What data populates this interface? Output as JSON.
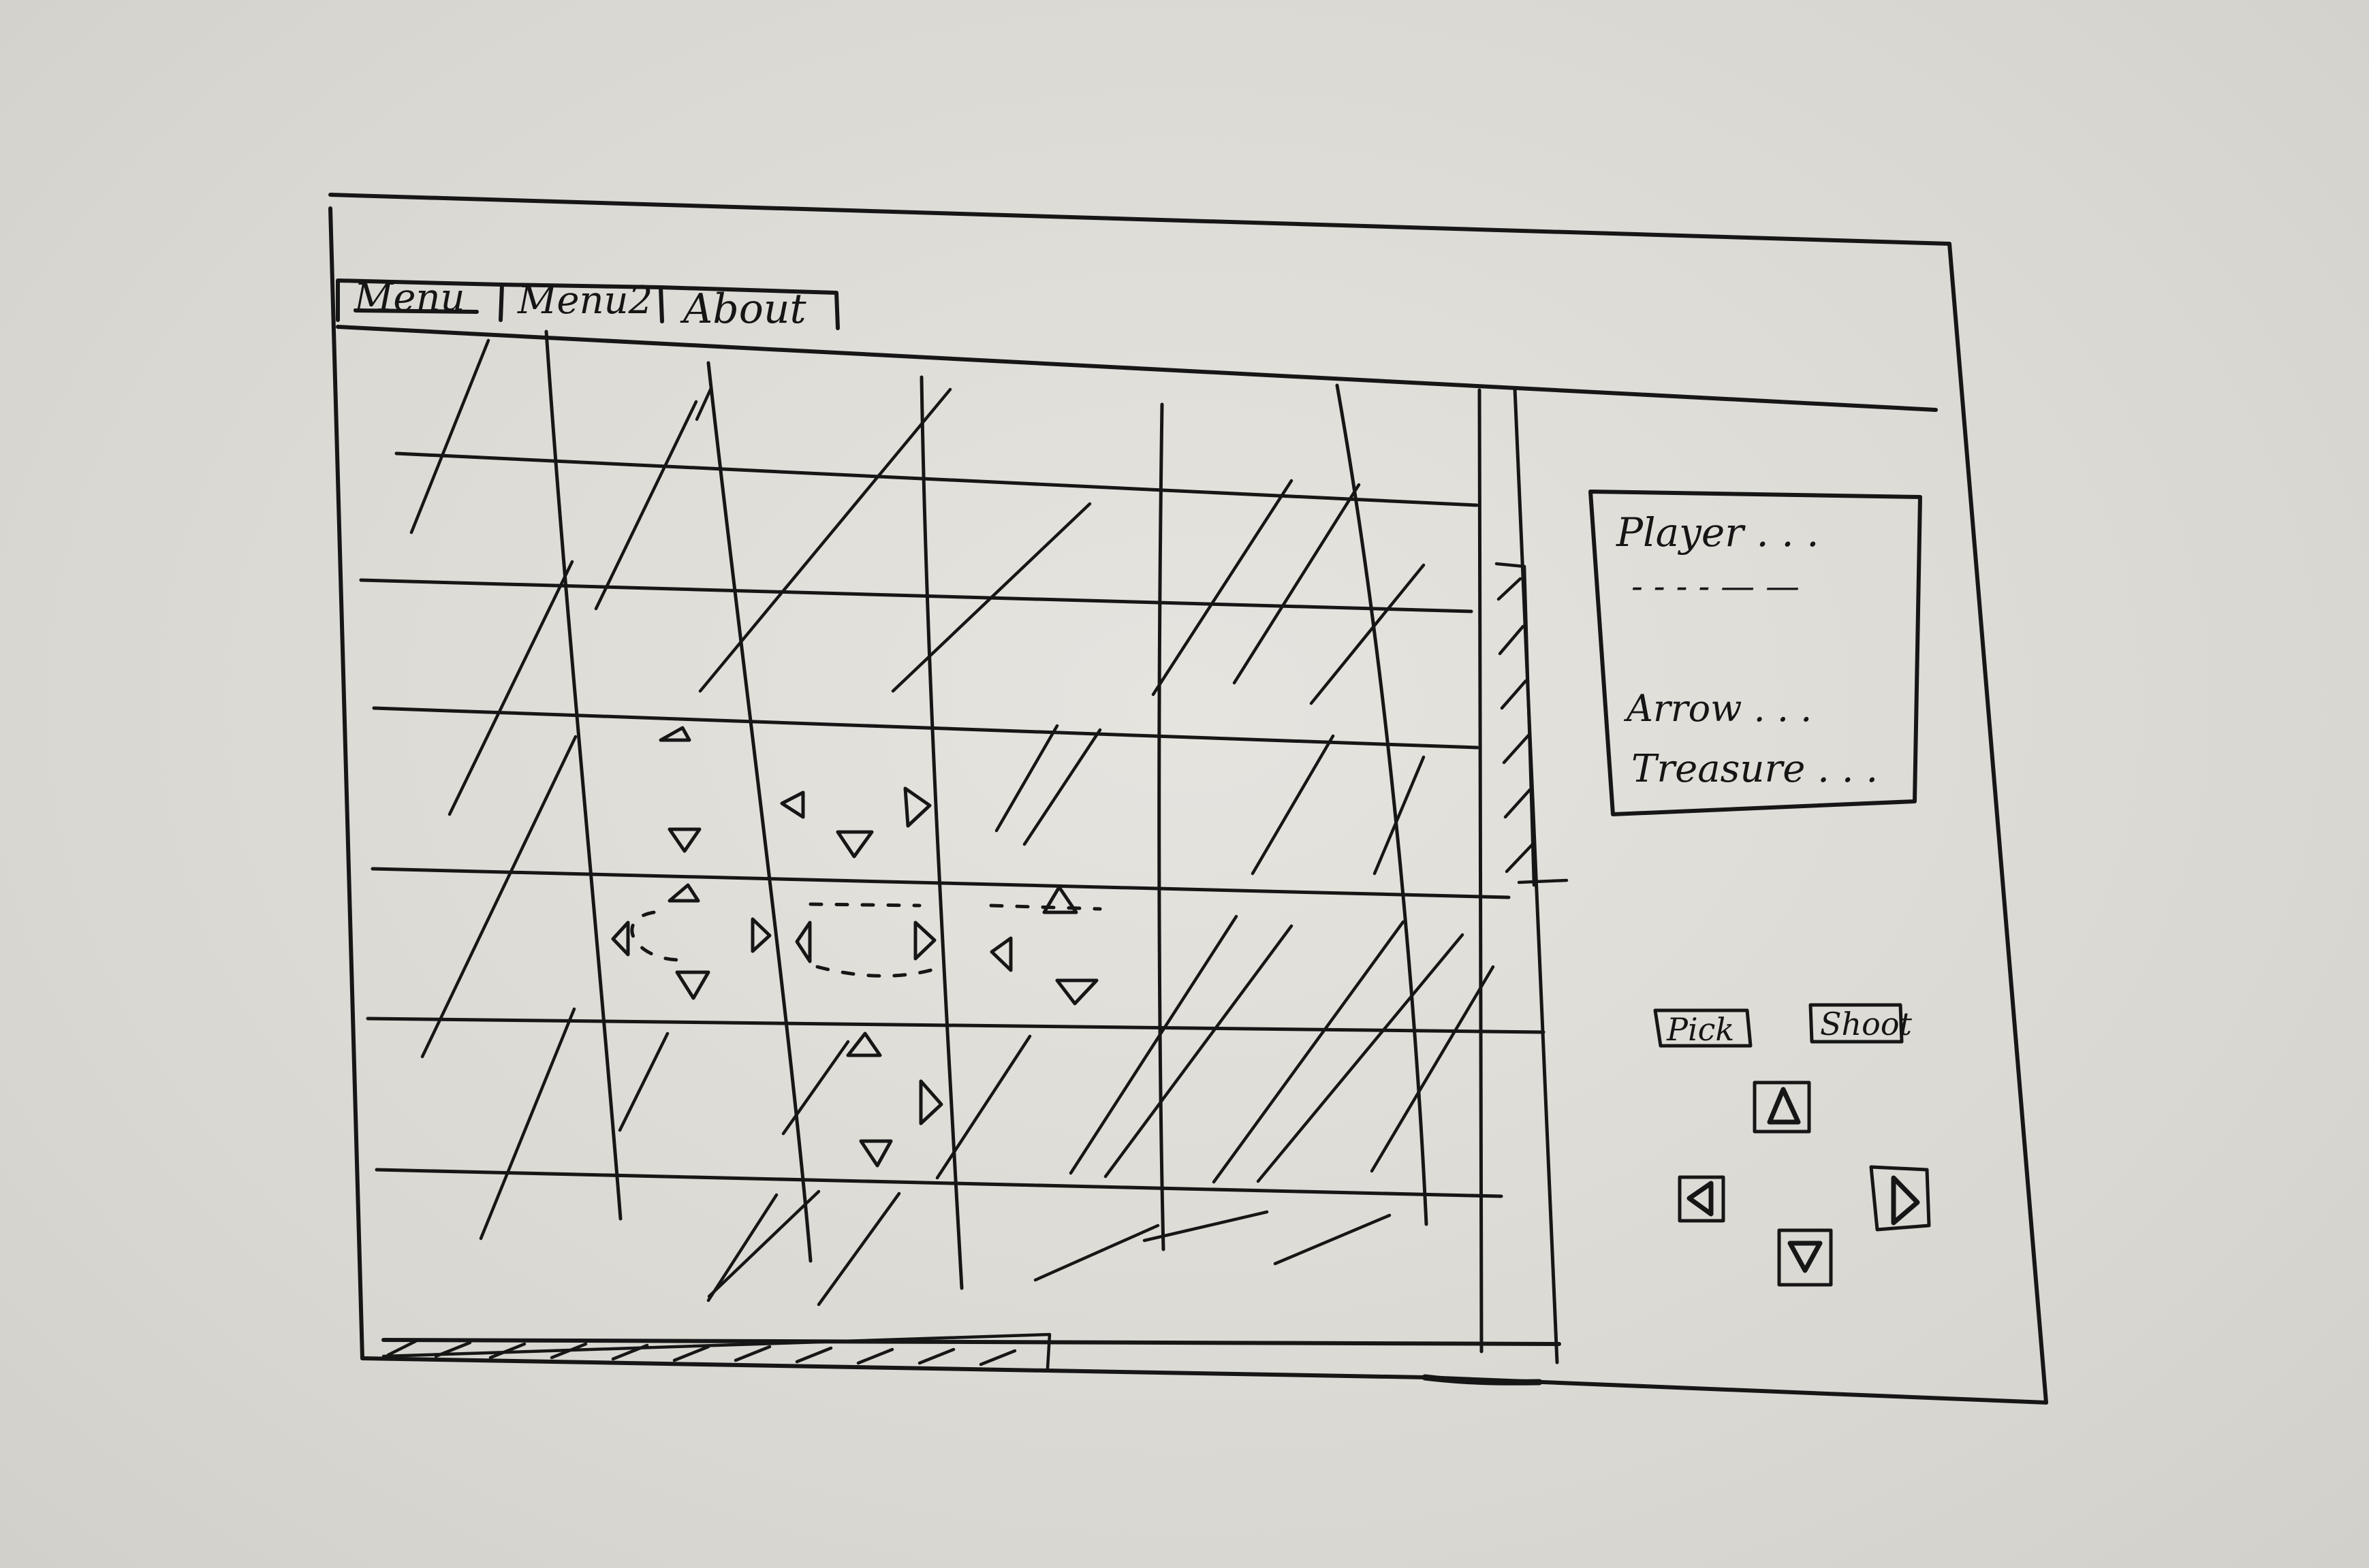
{
  "menu": {
    "tabs": [
      {
        "label": "Menu"
      },
      {
        "label": "Menu2"
      },
      {
        "label": "About"
      }
    ]
  },
  "info_panel": {
    "player_label": "Player . . .",
    "player_placeholder": "- -   - -   — —",
    "arrow_label": "Arrow . . .",
    "treasure_label": "Treasure . . ."
  },
  "controls": {
    "pick_label": "Pick",
    "shoot_label": "Shoot",
    "move_icons": [
      "arrow-up-icon",
      "arrow-left-icon",
      "arrow-right-icon",
      "arrow-down-icon"
    ]
  },
  "board": {
    "rows": 6,
    "columns": 7
  },
  "colors": {
    "ink": "#161616",
    "paper": "#dedcd6"
  }
}
